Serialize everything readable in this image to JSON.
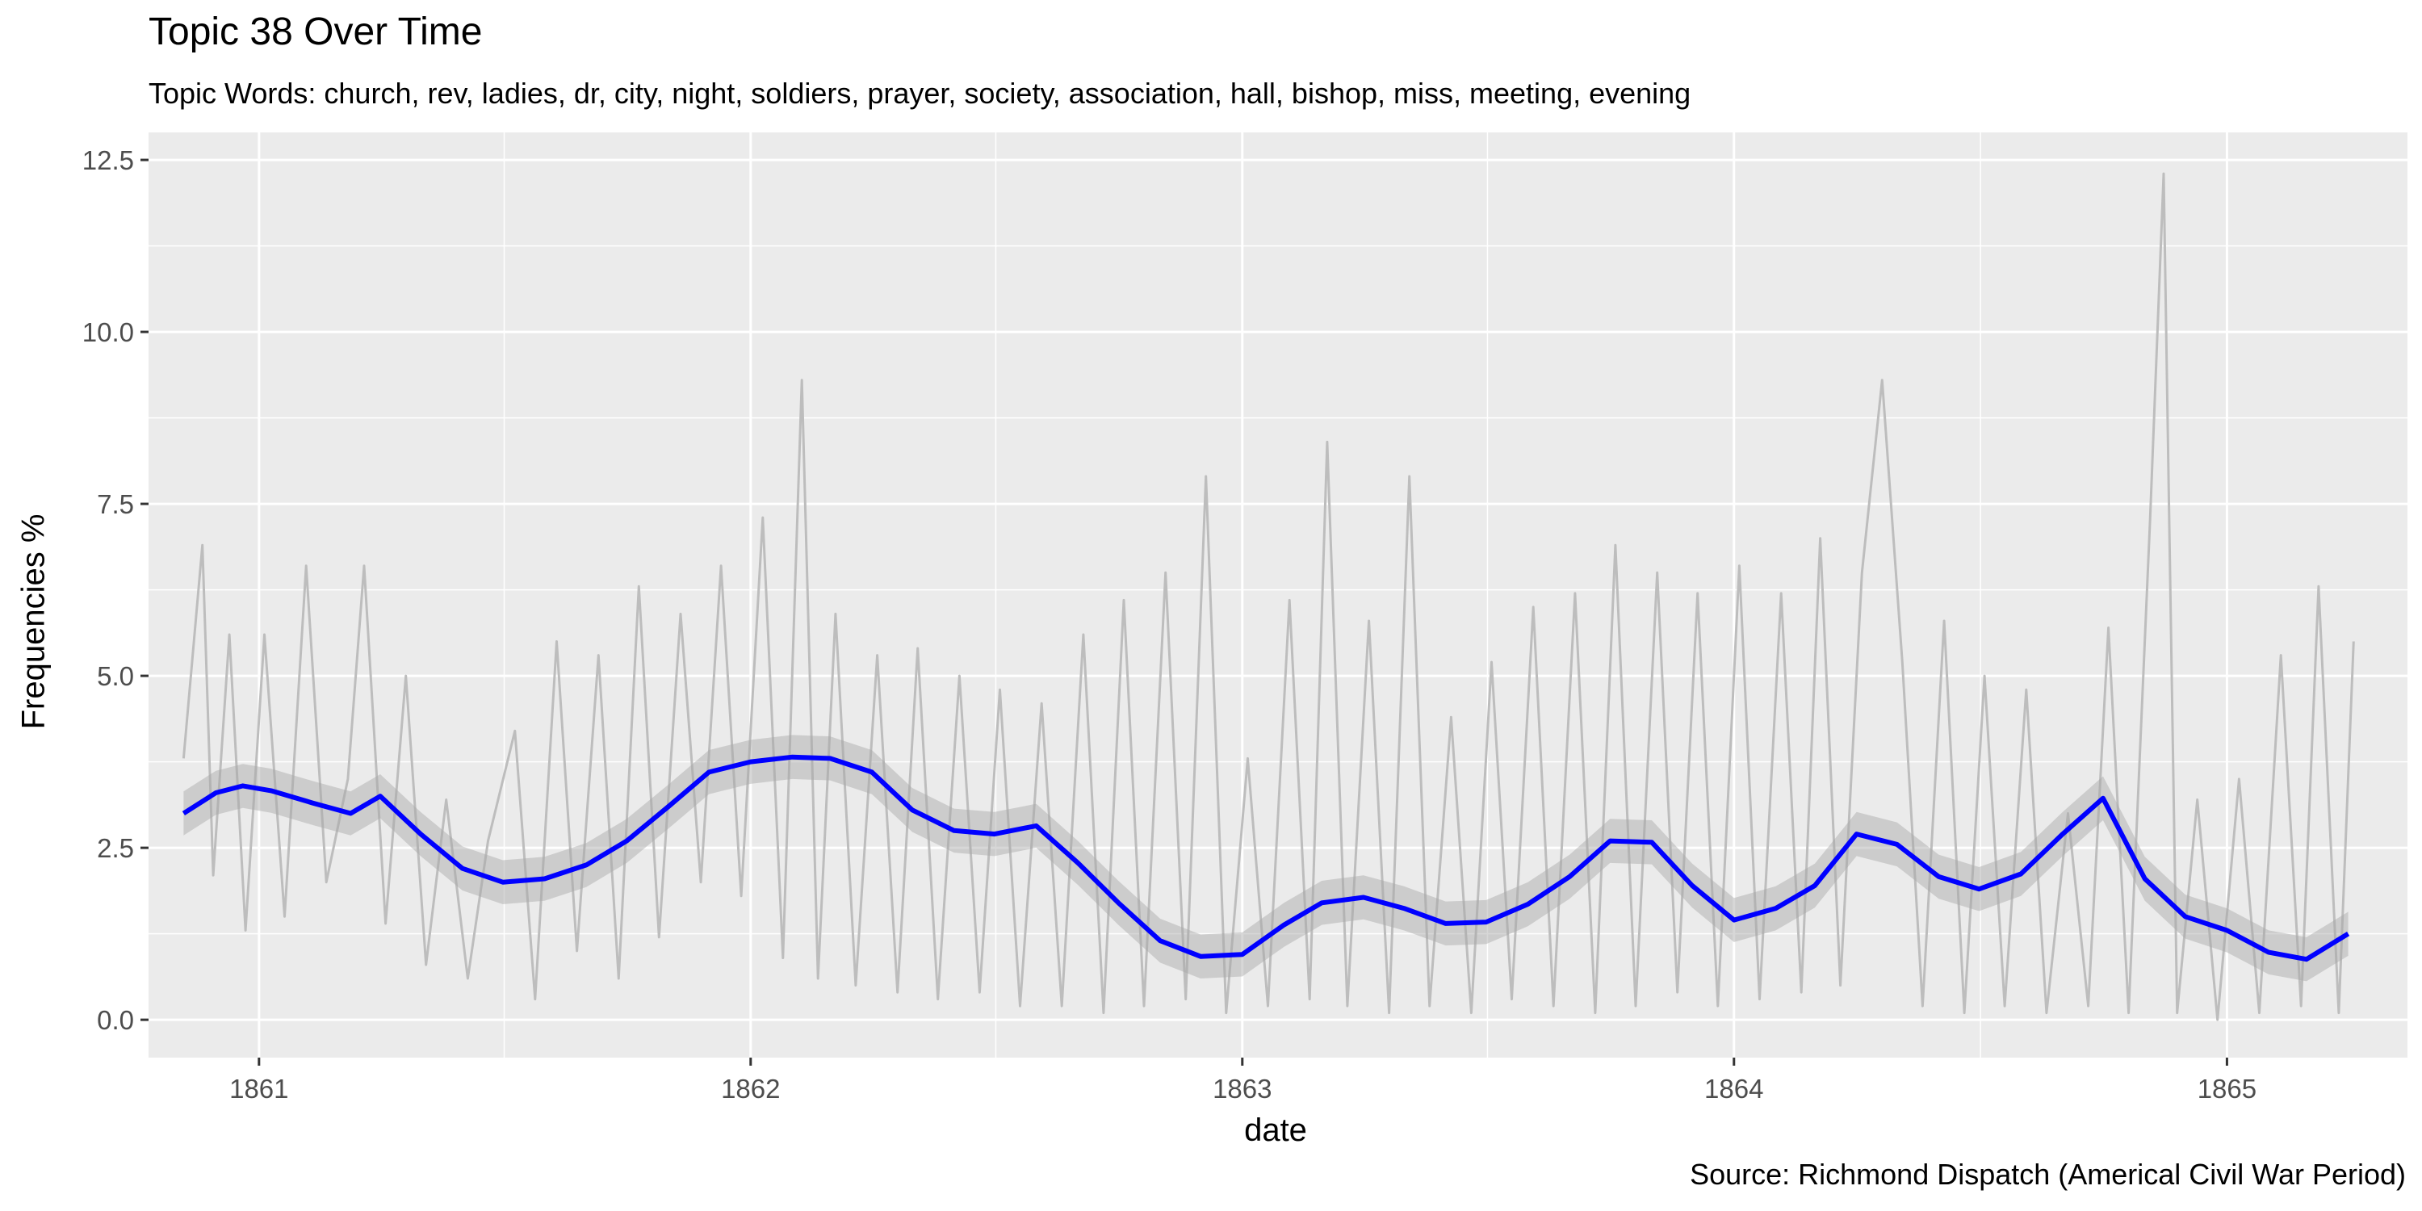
{
  "chart_data": {
    "type": "line",
    "title": "Topic 38 Over Time",
    "subtitle": "Topic Words: church, rev, ladies, dr, city, night, soldiers, prayer, society, association, hall, bishop, miss, meeting, evening",
    "xlabel": "date",
    "ylabel": "Frequencies %",
    "caption": "Source: Richmond Dispatch (Americal Civil War Period)",
    "x_ticks": [
      "1861",
      "1862",
      "1863",
      "1864",
      "1865"
    ],
    "y_ticks": [
      "0.0",
      "2.5",
      "5.0",
      "7.5",
      "10.0",
      "12.5"
    ],
    "xlim": [
      "1860-10-11",
      "1865-05-15"
    ],
    "ylim": [
      -0.55,
      12.9
    ],
    "grid": true,
    "legend": "none",
    "colors": {
      "panel": "#ebebeb",
      "grid": "#ffffff",
      "raw": "#bdbdbd",
      "smooth": "#0000ff",
      "band": "#a6a6a6"
    },
    "series": [
      {
        "style": "smoothed-trend",
        "x": [
          "1860-11-06",
          "1860-11-30",
          "1860-12-20",
          "1861-01-10",
          "1861-02-10",
          "1861-03-10",
          "1861-04-01",
          "1861-05-01",
          "1861-06-01",
          "1861-07-01",
          "1861-08-01",
          "1861-09-01",
          "1861-10-01",
          "1861-11-01",
          "1861-12-01",
          "1862-01-01",
          "1862-02-01",
          "1862-03-01",
          "1862-04-01",
          "1862-05-01",
          "1862-06-01",
          "1862-07-01",
          "1862-08-01",
          "1862-09-01",
          "1862-10-01",
          "1862-11-01",
          "1862-12-01",
          "1863-01-01",
          "1863-02-01",
          "1863-03-01",
          "1863-04-01",
          "1863-05-01",
          "1863-06-01",
          "1863-07-01",
          "1863-08-01",
          "1863-09-01",
          "1863-10-01",
          "1863-11-01",
          "1863-12-01",
          "1864-01-01",
          "1864-02-01",
          "1864-03-01",
          "1864-04-01",
          "1864-05-01",
          "1864-06-01",
          "1864-07-01",
          "1864-08-01",
          "1864-09-01",
          "1864-10-01",
          "1864-11-01",
          "1864-12-01",
          "1865-01-01",
          "1865-02-01",
          "1865-03-01",
          "1865-04-01"
        ],
        "y": [
          3.0,
          3.3,
          3.4,
          3.33,
          3.15,
          3.0,
          3.25,
          2.7,
          2.2,
          2.0,
          2.05,
          2.25,
          2.6,
          3.1,
          3.6,
          3.75,
          3.82,
          3.8,
          3.6,
          3.05,
          2.75,
          2.7,
          2.82,
          2.28,
          1.7,
          1.15,
          0.92,
          0.95,
          1.38,
          1.7,
          1.78,
          1.62,
          1.4,
          1.42,
          1.68,
          2.08,
          2.6,
          2.58,
          1.95,
          1.45,
          1.62,
          1.95,
          2.7,
          2.55,
          2.08,
          1.9,
          2.12,
          2.7,
          3.22,
          2.05,
          1.5,
          1.3,
          0.98,
          0.88,
          1.25
        ]
      },
      {
        "style": "raw-daily",
        "x": [
          "1860-11-06",
          "1860-11-20",
          "1860-11-28",
          "1860-12-10",
          "1860-12-22",
          "1861-01-05",
          "1861-01-20",
          "1861-02-05",
          "1861-02-20",
          "1861-03-08",
          "1861-03-20",
          "1861-04-05",
          "1861-04-20",
          "1861-05-05",
          "1861-05-20",
          "1861-06-05",
          "1861-06-20",
          "1861-07-10",
          "1861-07-25",
          "1861-08-10",
          "1861-08-25",
          "1861-09-10",
          "1861-09-25",
          "1861-10-10",
          "1861-10-25",
          "1861-11-10",
          "1861-11-25",
          "1861-12-10",
          "1861-12-25",
          "1862-01-10",
          "1862-01-25",
          "1862-02-08",
          "1862-02-20",
          "1862-03-05",
          "1862-03-20",
          "1862-04-05",
          "1862-04-20",
          "1862-05-05",
          "1862-05-20",
          "1862-06-05",
          "1862-06-20",
          "1862-07-05",
          "1862-07-20",
          "1862-08-05",
          "1862-08-20",
          "1862-09-05",
          "1862-09-20",
          "1862-10-05",
          "1862-10-20",
          "1862-11-05",
          "1862-11-20",
          "1862-12-05",
          "1862-12-20",
          "1863-01-05",
          "1863-01-20",
          "1863-02-05",
          "1863-02-20",
          "1863-03-05",
          "1863-03-20",
          "1863-04-05",
          "1863-04-20",
          "1863-05-05",
          "1863-05-20",
          "1863-06-05",
          "1863-06-20",
          "1863-07-05",
          "1863-07-20",
          "1863-08-05",
          "1863-08-20",
          "1863-09-05",
          "1863-09-20",
          "1863-10-05",
          "1863-10-20",
          "1863-11-05",
          "1863-11-20",
          "1863-12-05",
          "1863-12-20",
          "1864-01-05",
          "1864-01-20",
          "1864-02-05",
          "1864-02-20",
          "1864-03-05",
          "1864-03-20",
          "1864-04-05",
          "1864-04-20",
          "1864-05-05",
          "1864-05-20",
          "1864-06-05",
          "1864-06-20",
          "1864-07-05",
          "1864-07-20",
          "1864-08-05",
          "1864-08-20",
          "1864-09-05",
          "1864-09-20",
          "1864-10-05",
          "1864-10-20",
          "1864-11-05",
          "1864-11-15",
          "1864-11-25",
          "1864-12-10",
          "1864-12-25",
          "1865-01-10",
          "1865-01-25",
          "1865-02-10",
          "1865-02-25",
          "1865-03-10",
          "1865-03-25",
          "1865-04-05"
        ],
        "y": [
          3.8,
          6.9,
          2.1,
          5.6,
          1.3,
          5.6,
          1.5,
          6.6,
          2.0,
          3.5,
          6.6,
          1.4,
          5.0,
          0.8,
          3.2,
          0.6,
          2.6,
          4.2,
          0.3,
          5.5,
          1.0,
          5.3,
          0.6,
          6.3,
          1.2,
          5.9,
          2.0,
          6.6,
          1.8,
          7.3,
          0.9,
          9.3,
          0.6,
          5.9,
          0.5,
          5.3,
          0.4,
          5.4,
          0.3,
          5.0,
          0.4,
          4.8,
          0.2,
          4.6,
          0.2,
          5.6,
          0.1,
          6.1,
          0.2,
          6.5,
          0.3,
          7.9,
          0.1,
          3.8,
          0.2,
          6.1,
          0.3,
          8.4,
          0.2,
          5.8,
          0.1,
          7.9,
          0.2,
          4.4,
          0.1,
          5.2,
          0.3,
          6.0,
          0.2,
          6.2,
          0.1,
          6.9,
          0.2,
          6.5,
          0.4,
          6.2,
          0.2,
          6.6,
          0.3,
          6.2,
          0.4,
          7.0,
          0.5,
          6.5,
          9.3,
          5.2,
          0.2,
          5.8,
          0.1,
          5.0,
          0.2,
          4.8,
          0.1,
          3.0,
          0.2,
          5.7,
          0.1,
          7.3,
          12.3,
          0.1,
          3.2,
          0.0,
          3.5,
          0.1,
          5.3,
          0.2,
          6.3,
          0.1,
          5.5
        ]
      }
    ]
  }
}
